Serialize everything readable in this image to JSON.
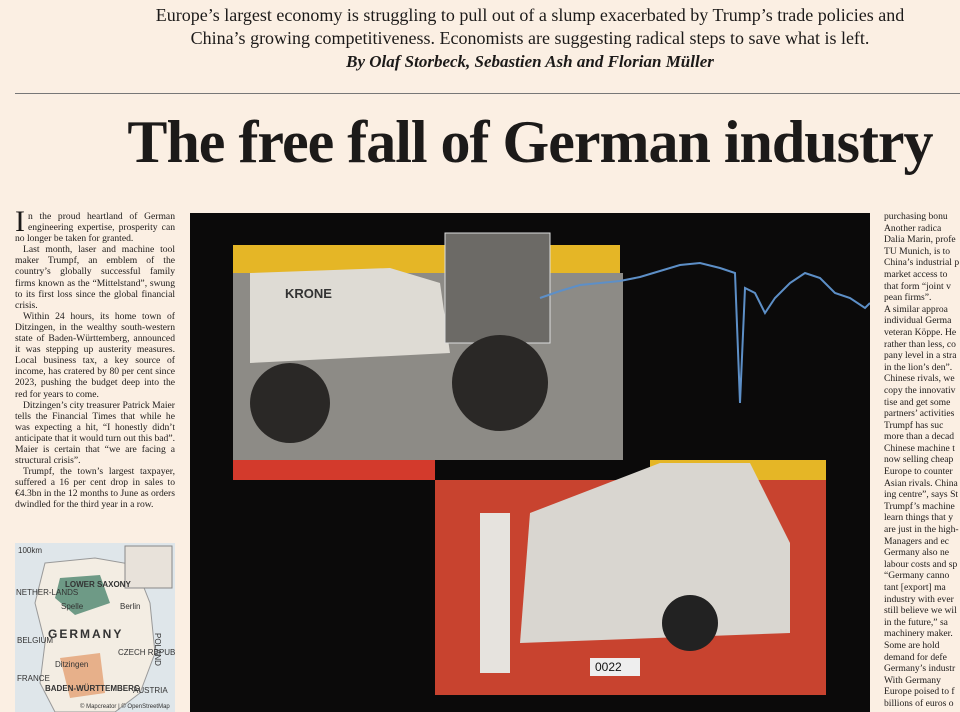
{
  "header": {
    "deck": [
      "Europe’s largest economy is struggling to pull out of a slump exacerbated by Trump’s trade policies and",
      "China’s growing competitiveness. Economists are suggesting radical steps to save what is left."
    ],
    "byline": "By Olaf Storbeck, Sebastien Ash and Florian Müller",
    "title": "The free fall of German industry"
  },
  "left_column": {
    "paragraphs": [
      "In the proud heartland of German engineering expertise, prosperity can no longer be taken for granted.",
      "Last month, laser and machine tool maker Trumpf, an emblem of the country’s globally successful family firms known as the “Mittelstand”, swung to its first loss since the global financial crisis.",
      "Within 24 hours, its home town of Ditzingen, in the wealthy south-western state of Baden-Württemberg, announced it was stepping up austerity measures. Local business tax, a key source of income, has cratered by 80 per cent since 2023, pushing the budget deep into the red for years to come.",
      "Ditzingen’s city treasurer Patrick Maier tells the Financial Times that while he was expecting a hit, “I honestly didn’t anticipate that it would turn out this bad”. Maier is certain that “we are facing a structural crisis”.",
      "Trumpf, the town’s largest taxpayer, suffered a 16 per cent drop in sales to €4.3bn in the 12 months to June as orders dwindled for the third year in a row."
    ]
  },
  "map": {
    "scale": "100km",
    "labels": [
      "LOWER SAXONY",
      "NETHER-LANDS",
      "Spelle",
      "Berlin",
      "GERMANY",
      "POLAND",
      "BELGIUM",
      "CZECH REPUBLIC",
      "Ditzingen",
      "BADEN-WÜRTTEMBERG",
      "FRANCE",
      "AUSTRIA"
    ],
    "credit": "© Mapcreator | © OpenStreetMap"
  },
  "image": {
    "brand": "KRONE",
    "plate": "0022"
  },
  "right_column": {
    "lines": [
      "purchasing bonu",
      "Another radica",
      "Dalia Marin, profe",
      "TU Munich, is to",
      "China’s industrial p",
      "market access to",
      "that form “joint v",
      "pean firms”.",
      "A similar approa",
      "individual Germa",
      "veteran Köppe. He",
      "rather than less, co",
      "pany level in a stra",
      "in the lion’s den”.",
      "Chinese rivals, we",
      "copy the innovativ",
      "tise and get some",
      "partners’ activities",
      "Trumpf has suc",
      "more than a decad",
      "Chinese machine t",
      "now selling cheap",
      "Europe to counter",
      "Asian rivals. China",
      "ing centre”, says St",
      "Trumpf’s machine",
      "learn things that y",
      "are just in the high-",
      "Managers and ec",
      "Germany also ne",
      "labour costs and sp",
      "“Germany canno",
      "tant [export] ma",
      "industry with ever",
      "still believe we wil",
      "in the future,” sa",
      "machinery maker.",
      "Some are hold",
      "demand for defe",
      "Germany’s industr",
      "With Germany",
      "Europe poised to f",
      "billions of euros o"
    ]
  }
}
